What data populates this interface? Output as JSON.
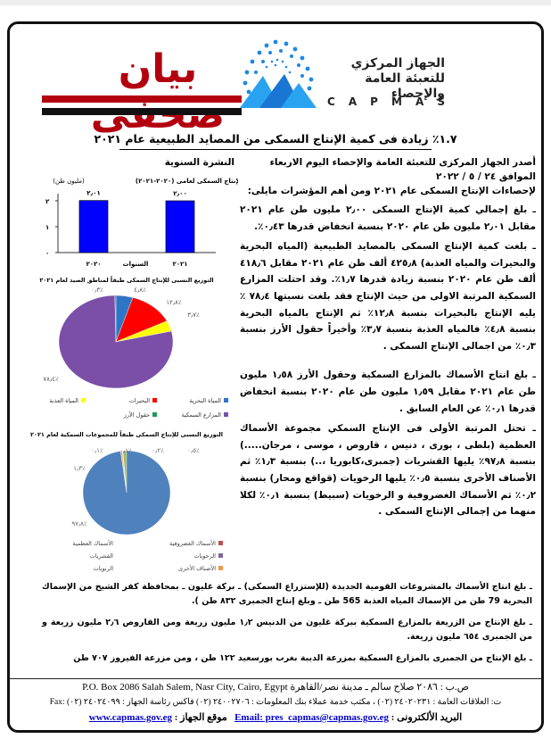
{
  "header": {
    "title": "بيان صحفى",
    "org_line1": "الجهاز المركزي",
    "org_line2": "للتعبئة العامة والإحصاء",
    "org_latin": [
      "C",
      "A",
      "P",
      "M",
      "A",
      "S"
    ],
    "colors": {
      "title_red": "#b3000f",
      "logo_blue": "#1e88e5"
    }
  },
  "headline": "١.٧٪ زيادة فى كمية الإنتاج السمكى من المصايد الطبيعية عام ٢٠٢١",
  "date_line": "أصدر الجهاز المركزى للتعبئة العامة والإحصاء اليوم  الاربعاء     الموافق  ٢٤ / ٥ / ٢٠٢٢",
  "annual_label": "النشرة السنوية",
  "intro_line2": "لإحصاءات الإنتاج السمكى عام ٢٠٢١ ومن أهم المؤشرات مايلى:",
  "paragraphs": [
    "ـ بلغ إجمالي كمية الإنتاج السمكى ٢٫٠٠ مليون طن عام ٢٠٢١ مقابل ٢٫٠١ مليون طن عام ٢٠٢٠ بنسبة انخفاض قدرها ٠٫٤٣٪.",
    "ـ بلغت كمية الإنتاج السمكى بالمصايد الطبيعية (المياه البحرية والبحيرات والمياه العذبة) ٤٢٥٫٨ ألف طن عام ٢٠٢١ مقابل ٤١٨٫٦ ألف طن عام ٢٠٢٠ بنسبة زيادة قدرها ١٫٧٪. وقد احتلت المزارع السمكية المرتبة الاولى من حيث الإنتاج فقد بلغت نسبتها ٧٨٫٤ ٪ يليه الإنتاج بالبحيرات بنسبة ١٢٫٨٪ ثم الإنتاج بالمياه البحرية بنسبة ٤٫٨٪ فالمياه العذبة بنسبة ٣٫٧٪ وأخيراً حقول الأرز بنسبة ٠٫٣٪ من اجمالى الإنتاج السمكى .",
    "ـ بلغ انتاج الأسماك بالمزارع السمكية وحقول الأرز ١٫٥٨ مليون طن عام ٢٠٢١ مقابل ١٫٥٩ مليون طن عام ٢٠٢٠ بنسبة انخفاض قدرها ٠٫١٪ عن العام السابق .",
    "ـ تحتل المرتبة الأولى فى الإنتاج السمكي مجموعة الأسماك العظمية (بلطى ، بورى ، دنيس ، قاروص ، موسى ، مرجان.....) بنسبة ٩٧٫٨٪ يليها القشريات (جمبرى،كابوريا ،..) بنسبة ١٫٣٪ ثم الأصناف الأخرى بنسبة ٠٫٥٪ يليها الرخويات (قواقع ومحار) بنسبة ٠٫٢٪ ثم الأسماك الغضروفية و الرخويات (سبيط) بنسبة ٠٫١٪ لكلا منهما من إجمالى الإنتاج السمكى .",
    "ـ بلغ انتاج الأسماك بالمشروعات القومية الجديدة (للإستزراع السمكى) ـ بركة غليون ـ بمحافظة كفر الشيخ من الإسماك البحرية 79 طن من الإسماك المياه العذبة 565 طن ـ وبلغ إنتاج الجمبرى ٨٣٢ طن ).",
    "ـ بلغ الإنتاج من الزريعة بالمزارع السمكية ببركة غليون من الدنيس ١٫٢ مليون زريعة ومن القاروص ٢٫٦ مليون زريعة و من الجمبرى ٦٥٤ مليون زريعة.",
    "ـ بلغ الإنتاج من الجمبرى بالمزارع السمكية بمزرعة الديبة بغرب بورسعيد ١٢٢ طن ، ومن مزرعة الفيروز ٧٠٧ طن"
  ],
  "footer": {
    "address": "ص.ب : ٢٠٨٦ صلاح سالم ـ مدينة نصر/القاهرة P.O. Box 2086 Salah Salem, Nasr City, Cairo, Egypt",
    "phones": "ت: العلاقات العامة : ٢٤٠٢٠٢٣١ (٠٢) ، مكتب خدمة عملاء بنك المعلومات : ٢٤٠٠٢٧٠٦ (٠٢) فاكس رئاسة الجهاز : ٢٤٠٢٤٠٩٩ (٠٢) :Fax",
    "email_label": "البريد الألكترونى :",
    "email": "Email: pres_capmas@capmas.gov.eg",
    "site_label": "موقع الجهاز :",
    "site": "www.capmas.gov.eg"
  },
  "chart_data": [
    {
      "type": "bar",
      "title": "الإنتاج السمكى لعامى (٢٠٢٠-٢٠٢١)",
      "unit_label": "(مليون طن)",
      "xlabel": "السنوات",
      "categories": [
        "٢٠٢٠",
        "٢٠٢١"
      ],
      "values": [
        2.01,
        2.0
      ],
      "value_labels": [
        "٢٫٠١",
        "٢٫٠٠"
      ],
      "yticks": [
        "٠",
        "١",
        "٢"
      ],
      "ylim": [
        0,
        2
      ],
      "color": "#0000ff"
    },
    {
      "type": "pie",
      "title": "التوزيع النسبى للإنتاج السمكى طبقاً لمناطق الصيد لعام ٢٠٢١",
      "slices": [
        {
          "name": "المياة البحرية",
          "value": 4.8,
          "label": "٤٫٨٪",
          "color": "#2e75c6"
        },
        {
          "name": "البحيرات",
          "value": 12.8,
          "label": "١٢٫٨٪",
          "color": "#ff0000"
        },
        {
          "name": "المياة العذبة",
          "value": 3.7,
          "label": "٣٫٧٪",
          "color": "#ffff00"
        },
        {
          "name": "المزارع السمكية",
          "value": 78.4,
          "label": "٧٨٫٤٪",
          "color": "#7b4fa8"
        },
        {
          "name": "حقول الأرز",
          "value": 0.3,
          "label": "٠٫٣٪",
          "color": "#1e9a5a"
        }
      ],
      "legend": "bottom"
    },
    {
      "type": "pie",
      "title": "التوزيع النسبى للإنتاج السمكى طبقاً للمجموعات السمكية لعام ٢٠٢١",
      "slices": [
        {
          "name": "الأسماك الغضروفية",
          "value": 0.1,
          "label": "٠٫١٪",
          "color": "#c0504d"
        },
        {
          "name": "الأصناف الأخرى",
          "value": 0.5,
          "label": "٠٫٥٪",
          "color": "#f79646"
        },
        {
          "name": "الرخويات",
          "value": 0.2,
          "label": "٠٫٢٪",
          "color": "#4bacc6"
        },
        {
          "name": "الرخويات ",
          "value": 0.1,
          "label": "٠٫١٪",
          "color": "#8064a2"
        },
        {
          "name": "القشريات",
          "value": 1.3,
          "label": "١٫٣٪",
          "color": "#9bbb59"
        },
        {
          "name": "الأسماك العظمية",
          "value": 97.8,
          "label": "٩٧٫٨٪",
          "color": "#4f81bd"
        }
      ],
      "legend_items": [
        "الأسماك الغضروفية",
        "الأسماك العظمية",
        "الرخويات",
        "القشريات",
        "الأصناف الأخرى",
        "الرنويات"
      ],
      "legend_colors": [
        "#c0504d",
        "",
        "#8064a2",
        "",
        "#f79646",
        ""
      ],
      "legend": "bottom"
    }
  ]
}
